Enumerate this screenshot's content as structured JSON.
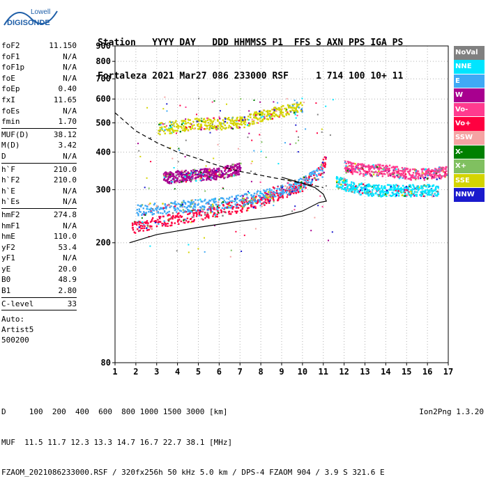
{
  "logo": {
    "line1": "Lowell",
    "line2": "DIGISONDE"
  },
  "header": {
    "line1": "Station   YYYY DAY   DDD HHMMSS P1  FFS S AXN PPS IGA PS",
    "line2": "Fortaleza 2021 Mar27 086 233000 RSF     1 714 100 10+ 11"
  },
  "params": {
    "group1": [
      {
        "k": "foF2",
        "v": "11.150"
      },
      {
        "k": "foF1",
        "v": "N/A"
      },
      {
        "k": "foF1p",
        "v": "N/A"
      },
      {
        "k": "foE",
        "v": "N/A"
      },
      {
        "k": "foEp",
        "v": "0.40"
      },
      {
        "k": "fxI",
        "v": "11.65"
      },
      {
        "k": "foEs",
        "v": "N/A"
      },
      {
        "k": "fmin",
        "v": "1.70"
      }
    ],
    "group2": [
      {
        "k": "MUF(D)",
        "v": "38.12"
      },
      {
        "k": "M(D)",
        "v": "3.42"
      },
      {
        "k": "D",
        "v": "N/A"
      }
    ],
    "group3": [
      {
        "k": "h`F",
        "v": "210.0"
      },
      {
        "k": "h`F2",
        "v": "210.0"
      },
      {
        "k": "h`E",
        "v": "N/A"
      },
      {
        "k": "h`Es",
        "v": "N/A"
      }
    ],
    "group4": [
      {
        "k": "hmF2",
        "v": "274.8"
      },
      {
        "k": "hmF1",
        "v": "N/A"
      },
      {
        "k": "hmE",
        "v": "110.0"
      },
      {
        "k": "yF2",
        "v": "53.4"
      },
      {
        "k": "yF1",
        "v": "N/A"
      },
      {
        "k": "yE",
        "v": "20.0"
      },
      {
        "k": "B0",
        "v": "48.9"
      },
      {
        "k": "B1",
        "v": "2.80"
      }
    ],
    "group5": [
      {
        "k": "C-level",
        "v": "33"
      }
    ],
    "auto": [
      "Auto:",
      "Artist5",
      "500200"
    ]
  },
  "legend": [
    {
      "label": "NoVal",
      "color": "#808080"
    },
    {
      "label": "NNE",
      "color": "#00e5ff"
    },
    {
      "label": "E",
      "color": "#3fa9f5"
    },
    {
      "label": "W",
      "color": "#a8008f"
    },
    {
      "label": "Vo-",
      "color": "#ff3b8f"
    },
    {
      "label": "Vo+",
      "color": "#ff0040"
    },
    {
      "label": "SSW",
      "color": "#f5a3a3"
    },
    {
      "label": "X-",
      "color": "#008000"
    },
    {
      "label": "X+",
      "color": "#80c060"
    },
    {
      "label": "SSE",
      "color": "#d4d400"
    },
    {
      "label": "NNW",
      "color": "#1a1acd"
    }
  ],
  "footer": {
    "line1": "D     100  200  400  600  800 1000 1500 3000 [km]",
    "line2": "MUF  11.5 11.7 12.3 13.3 14.7 16.7 22.7 38.1 [MHz]",
    "line3": "FZAOM_2021086233000.RSF / 320fx256h 50 kHz 5.0 km / DPS-4 FZAOM 904 / 3.9 S 321.6 E",
    "version": "Ion2Png 1.3.20"
  },
  "chart_data": {
    "type": "scatter",
    "xlim": [
      1,
      17
    ],
    "ylim": [
      80,
      900
    ],
    "y_scale": "log",
    "xticks": [
      1,
      2,
      3,
      4,
      5,
      6,
      7,
      8,
      9,
      10,
      11,
      12,
      13,
      14,
      15,
      16,
      17
    ],
    "yticks": [
      80,
      200,
      300,
      400,
      500,
      600,
      700,
      800,
      900
    ],
    "grid": true,
    "series": [
      {
        "name": "Vo+",
        "points": [
          [
            1.8,
            225
          ],
          [
            2.5,
            232
          ],
          [
            3,
            236
          ],
          [
            4,
            242
          ],
          [
            5,
            250
          ],
          [
            6,
            258
          ],
          [
            7,
            266
          ],
          [
            8,
            278
          ],
          [
            9,
            292
          ],
          [
            10,
            310
          ],
          [
            10.8,
            345
          ],
          [
            11.1,
            380
          ]
        ]
      },
      {
        "name": "E",
        "points": [
          [
            2,
            258
          ],
          [
            3,
            262
          ],
          [
            4,
            265
          ],
          [
            5,
            268
          ],
          [
            6,
            272
          ],
          [
            7,
            278
          ],
          [
            8,
            288
          ],
          [
            9,
            300
          ],
          [
            10,
            318
          ],
          [
            11,
            350
          ]
        ]
      },
      {
        "name": "W",
        "points": [
          [
            3.3,
            330
          ],
          [
            4,
            334
          ],
          [
            5,
            338
          ],
          [
            6,
            342
          ],
          [
            7,
            356
          ]
        ]
      },
      {
        "name": "SSE",
        "points": [
          [
            3,
            480
          ],
          [
            4,
            490
          ],
          [
            5,
            500
          ],
          [
            6,
            500
          ],
          [
            7,
            505
          ],
          [
            8,
            530
          ],
          [
            9,
            550
          ],
          [
            10,
            570
          ]
        ]
      },
      {
        "name": "NNE",
        "points": [
          [
            11.6,
            320
          ],
          [
            12.5,
            305
          ],
          [
            13.5,
            300
          ],
          [
            14.5,
            300
          ],
          [
            15.5,
            300
          ],
          [
            16.5,
            300
          ]
        ]
      },
      {
        "name": "Vo-",
        "points": [
          [
            12,
            360
          ],
          [
            13,
            350
          ],
          [
            14,
            350
          ],
          [
            15,
            340
          ],
          [
            16,
            340
          ],
          [
            16.9,
            345
          ]
        ]
      }
    ],
    "profile_line": [
      [
        1.7,
        200
      ],
      [
        3,
        213
      ],
      [
        5,
        225
      ],
      [
        7,
        236
      ],
      [
        9,
        245
      ],
      [
        10,
        255
      ],
      [
        10.8,
        272
      ],
      [
        11.15,
        275
      ],
      [
        11.0,
        290
      ],
      [
        10.6,
        305
      ],
      [
        10,
        315
      ],
      [
        9,
        330
      ]
    ],
    "muf_curve_dashed": [
      [
        1,
        540
      ],
      [
        2,
        470
      ],
      [
        3,
        430
      ],
      [
        4,
        400
      ],
      [
        5,
        380
      ],
      [
        6,
        360
      ],
      [
        7,
        345
      ],
      [
        8,
        335
      ],
      [
        9,
        325
      ],
      [
        10,
        315
      ],
      [
        11,
        305
      ]
    ]
  }
}
